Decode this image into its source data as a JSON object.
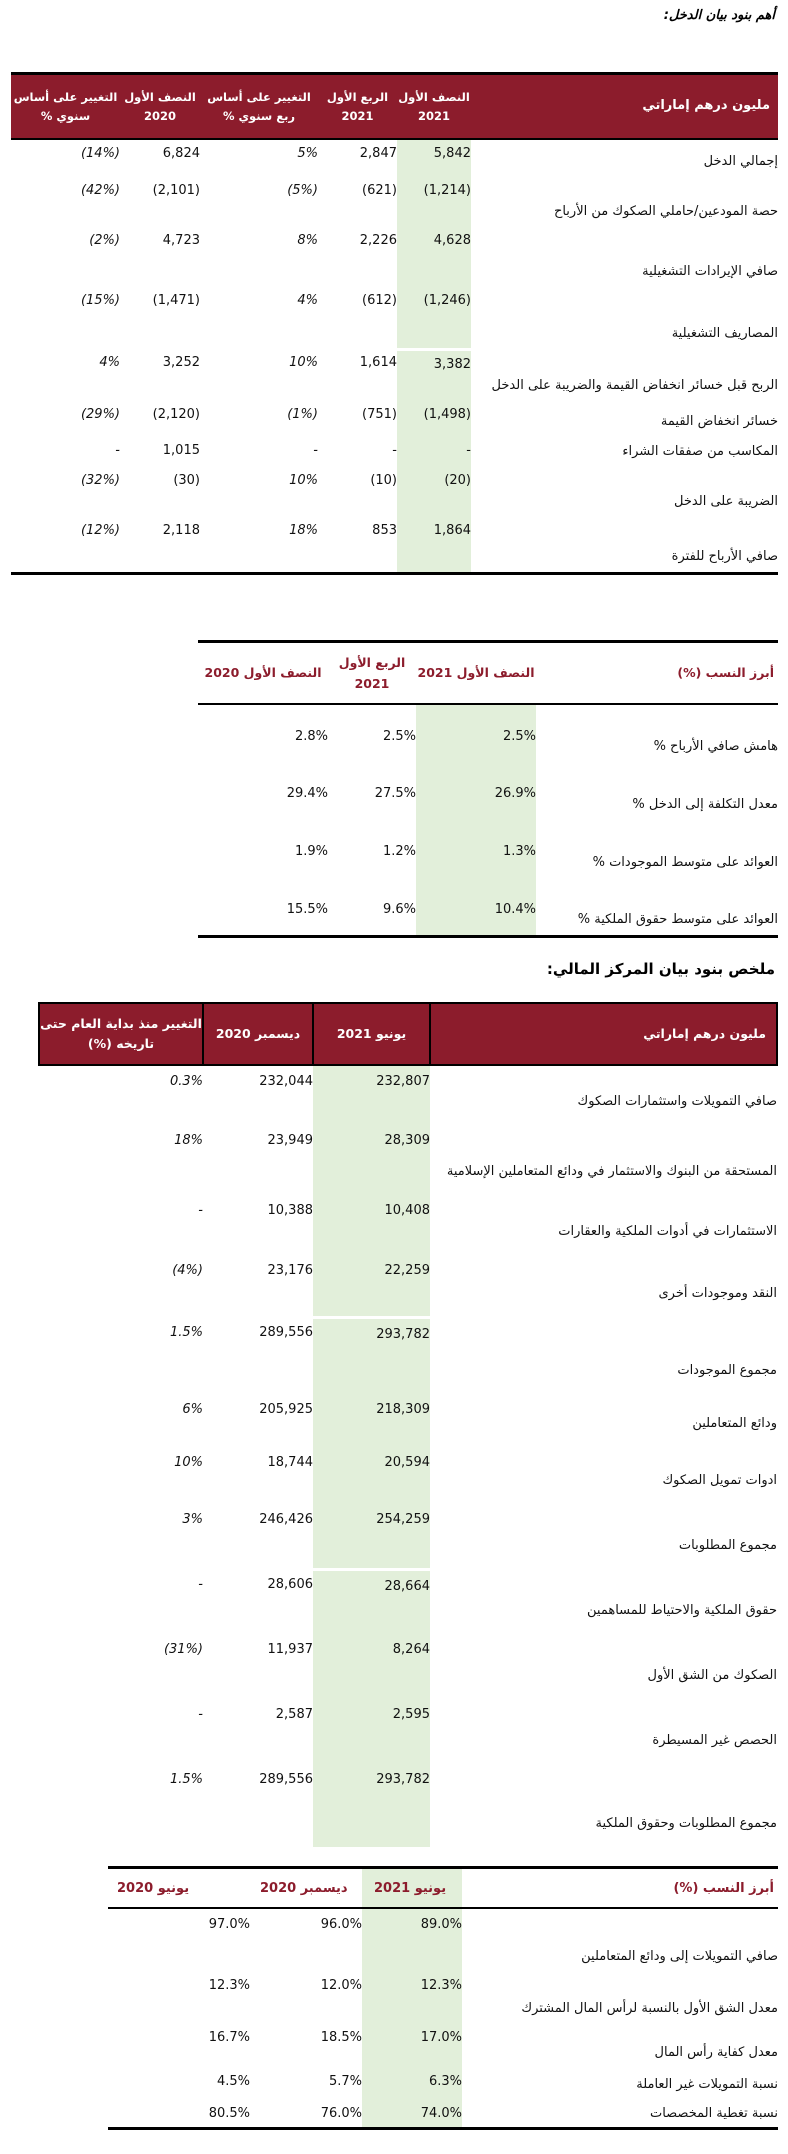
{
  "colors": {
    "maroon": "#8C1C2C",
    "green": "#E2EFDA",
    "hdr_red": "#8C1C2C"
  },
  "titles": {
    "income": "أهم بنود بيان الدخل:",
    "balance": "ملخص بنود بيان المركز المالي:"
  },
  "income_table": {
    "headers": {
      "label": "مليون درهم إماراتي",
      "h1_2021": "النصف الأول 2021",
      "q1_2021": "الربع الأول 2021",
      "qoq": "التغيير على أساس ربع سنوي %",
      "h1_2020": "النصف الأول 2020",
      "yoy": "التغيير على أساس سنوي %"
    },
    "rows": [
      {
        "label": "إجمالي الدخل",
        "h1_2021": "5,842",
        "q1_2021": "2,847",
        "qoq": "5%",
        "h1_2020": "6,824",
        "yoy": "(14%)"
      },
      {
        "label": "حصة المودعين/حاملي الصكوك من الأرباح",
        "h1_2021": "(1,214)",
        "q1_2021": "(621)",
        "qoq": "(5%)",
        "h1_2020": "(2,101)",
        "yoy": "(42%)"
      },
      {
        "label": "صافي الإيرادات التشغيلية",
        "h1_2021": "4,628",
        "q1_2021": "2,226",
        "qoq": "8%",
        "h1_2020": "4,723",
        "yoy": "(2%)"
      },
      {
        "label": "المصاريف التشغيلية",
        "h1_2021": "(1,246)",
        "q1_2021": "(612)",
        "qoq": "4%",
        "h1_2020": "(1,471)",
        "yoy": "(15%)"
      },
      {
        "label": "الربح قبل خسائر انخفاض القيمة والضريبة على الدخل",
        "h1_2021": "3,382",
        "q1_2021": "1,614",
        "qoq": "10%",
        "h1_2020": "3,252",
        "yoy": "4%"
      },
      {
        "label": "خسائر انخفاض القيمة",
        "h1_2021": "(1,498)",
        "q1_2021": "(751)",
        "qoq": "(1%)",
        "h1_2020": "(2,120)",
        "yoy": "(29%)"
      },
      {
        "label": "المكاسب من صفقات الشراء",
        "h1_2021": "-",
        "q1_2021": "-",
        "qoq": "-",
        "h1_2020": "1,015",
        "yoy": "-"
      },
      {
        "label": "الضريبة على الدخل",
        "h1_2021": "(20)",
        "q1_2021": "(10)",
        "qoq": "10%",
        "h1_2020": "(30)",
        "yoy": "(32%)"
      },
      {
        "label": "صافي الأرباح للفترة",
        "h1_2021": "1,864",
        "q1_2021": "853",
        "qoq": "18%",
        "h1_2020": "2,118",
        "yoy": "(12%)"
      }
    ]
  },
  "income_ratios_table": {
    "headers": {
      "label": "أبرز النسب (%)",
      "h1_2021": "النصف الأول 2021",
      "q1_2021": "الربع الأول 2021",
      "h1_2020": "النصف الأول 2020"
    },
    "rows": [
      {
        "label": "هامش صافي الأرباح %",
        "h1_2021": "2.5%",
        "q1_2021": "2.5%",
        "h1_2020": "2.8%"
      },
      {
        "label": "معدل التكلفة إلى الدخل %",
        "h1_2021": "26.9%",
        "q1_2021": "27.5%",
        "h1_2020": "29.4%"
      },
      {
        "label": "العوائد على متوسط الموجودات %",
        "h1_2021": "1.3%",
        "q1_2021": "1.2%",
        "h1_2020": "1.9%"
      },
      {
        "label": "العوائد على متوسط حقوق الملكية %",
        "h1_2021": "10.4%",
        "q1_2021": "9.6%",
        "h1_2020": "15.5%"
      }
    ]
  },
  "balance_table": {
    "headers": {
      "label": "مليون درهم إماراتي",
      "jun_2021": "يونيو 2021",
      "dec_2020": "ديسمبر 2020",
      "ytd": "التغيير منذ بداية العام حتى تاريخه (%)"
    },
    "rows": [
      {
        "label": "صافي التمويلات واستثمارات الصكوك",
        "jun_2021": "232,807",
        "dec_2020": "232,044",
        "ytd": "0.3%"
      },
      {
        "label": "المستحقة من البنوك والاستثمار في ودائع المتعاملين الإسلامية",
        "jun_2021": "28,309",
        "dec_2020": "23,949",
        "ytd": "18%"
      },
      {
        "label": "الاستثمارات في أدوات الملكية والعقارات",
        "jun_2021": "10,408",
        "dec_2020": "10,388",
        "ytd": "-"
      },
      {
        "label": "النقد وموجودات أخرى",
        "jun_2021": "22,259",
        "dec_2020": "23,176",
        "ytd": "(4%)"
      },
      {
        "label": "مجموع الموجودات",
        "jun_2021": "293,782",
        "dec_2020": "289,556",
        "ytd": "1.5%"
      },
      {
        "label": "ودائع المتعاملين",
        "jun_2021": "218,309",
        "dec_2020": "205,925",
        "ytd": "6%"
      },
      {
        "label": "ادوات تمويل الصكوك",
        "jun_2021": "20,594",
        "dec_2020": "18,744",
        "ytd": "10%"
      },
      {
        "label": "مجموع المطلوبات",
        "jun_2021": "254,259",
        "dec_2020": "246,426",
        "ytd": "3%"
      },
      {
        "label": "حقوق الملكية والاحتياط للمساهمين",
        "jun_2021": "28,664",
        "dec_2020": "28,606",
        "ytd": "-"
      },
      {
        "label": "الصكوك من الشق الأول",
        "jun_2021": "8,264",
        "dec_2020": "11,937",
        "ytd": "(31%)"
      },
      {
        "label": "الحصص غير المسيطرة",
        "jun_2021": "2,595",
        "dec_2020": "2,587",
        "ytd": "-"
      },
      {
        "label": "مجموع المطلوبات وحقوق الملكية",
        "jun_2021": "293,782",
        "dec_2020": "289,556",
        "ytd": "1.5%"
      }
    ]
  },
  "balance_ratios_table": {
    "headers": {
      "label": "أبرز النسب (%)",
      "jun_2021": "يونيو 2021",
      "dec_2020": "ديسمبر 2020",
      "jun_2020": "يونيو 2020"
    },
    "rows": [
      {
        "label": "صافي التمويلات إلى ودائع المتعاملين",
        "jun_2021": "89.0%",
        "dec_2020": "96.0%",
        "jun_2020": "97.0%"
      },
      {
        "label": "معدل الشق الأول بالنسبة لرأس المال المشترك",
        "jun_2021": "12.3%",
        "dec_2020": "12.0%",
        "jun_2020": "12.3%"
      },
      {
        "label": "معدل كفاية رأس المال",
        "jun_2021": "17.0%",
        "dec_2020": "18.5%",
        "jun_2020": "16.7%"
      },
      {
        "label": "نسبة التمويلات غير العاملة",
        "jun_2021": "6.3%",
        "dec_2020": "5.7%",
        "jun_2020": "4.5%"
      },
      {
        "label": "نسبة تغطية المخصصات",
        "jun_2021": "74.0%",
        "dec_2020": "76.0%",
        "jun_2020": "80.5%"
      }
    ]
  }
}
